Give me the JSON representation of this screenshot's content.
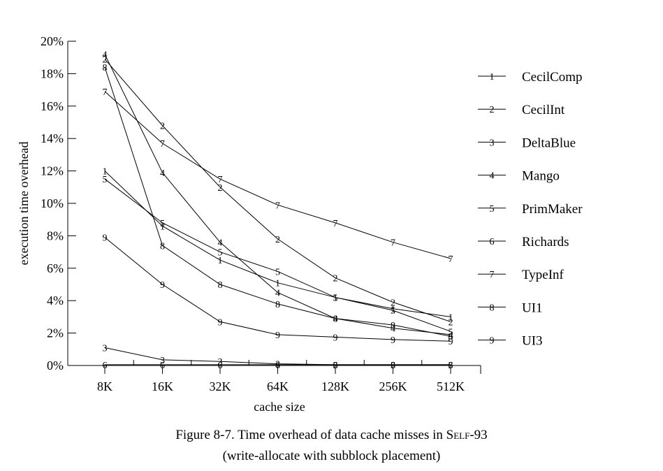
{
  "chart_data": {
    "type": "line",
    "xlabel": "cache size",
    "ylabel": "execution time overhead",
    "categories": [
      "8K",
      "16K",
      "32K",
      "64K",
      "128K",
      "256K",
      "512K"
    ],
    "yticks": [
      "0%",
      "2%",
      "4%",
      "6%",
      "8%",
      "10%",
      "12%",
      "14%",
      "16%",
      "18%",
      "20%"
    ],
    "ylim": [
      0,
      20
    ],
    "legend_position": "right",
    "series": [
      {
        "name": "CecilComp",
        "marker": "1",
        "values": [
          12.0,
          8.6,
          6.5,
          5.1,
          4.2,
          3.5,
          3.0
        ]
      },
      {
        "name": "CecilInt",
        "marker": "2",
        "values": [
          18.9,
          14.8,
          11.0,
          7.8,
          5.4,
          3.9,
          2.7
        ]
      },
      {
        "name": "DeltaBlue",
        "marker": "3",
        "values": [
          1.1,
          0.35,
          0.25,
          0.1,
          0.05,
          0.05,
          0.05
        ]
      },
      {
        "name": "Mango",
        "marker": "4",
        "values": [
          19.2,
          11.9,
          7.6,
          4.5,
          2.9,
          2.3,
          1.9
        ]
      },
      {
        "name": "PrimMaker",
        "marker": "5",
        "values": [
          11.5,
          8.8,
          7.0,
          5.8,
          4.2,
          3.4,
          2.1
        ]
      },
      {
        "name": "Richards",
        "marker": "6",
        "values": [
          0.05,
          0.05,
          0.05,
          0.05,
          0.05,
          0.05,
          0.05
        ]
      },
      {
        "name": "TypeInf",
        "marker": "7",
        "values": [
          16.9,
          13.7,
          11.5,
          9.9,
          8.8,
          7.6,
          6.6
        ]
      },
      {
        "name": "UI1",
        "marker": "8",
        "values": [
          18.4,
          7.4,
          5.0,
          3.8,
          2.9,
          2.5,
          1.8
        ]
      },
      {
        "name": "UI3",
        "marker": "9",
        "values": [
          7.9,
          5.0,
          2.7,
          1.9,
          1.75,
          1.6,
          1.5
        ]
      }
    ]
  },
  "caption": {
    "line1_prefix": "Figure 8-7.  Time overhead of data cache misses in S",
    "line1_smallcaps": "elf",
    "line1_suffix": "-93",
    "line2": "(write-allocate with subblock placement)"
  }
}
